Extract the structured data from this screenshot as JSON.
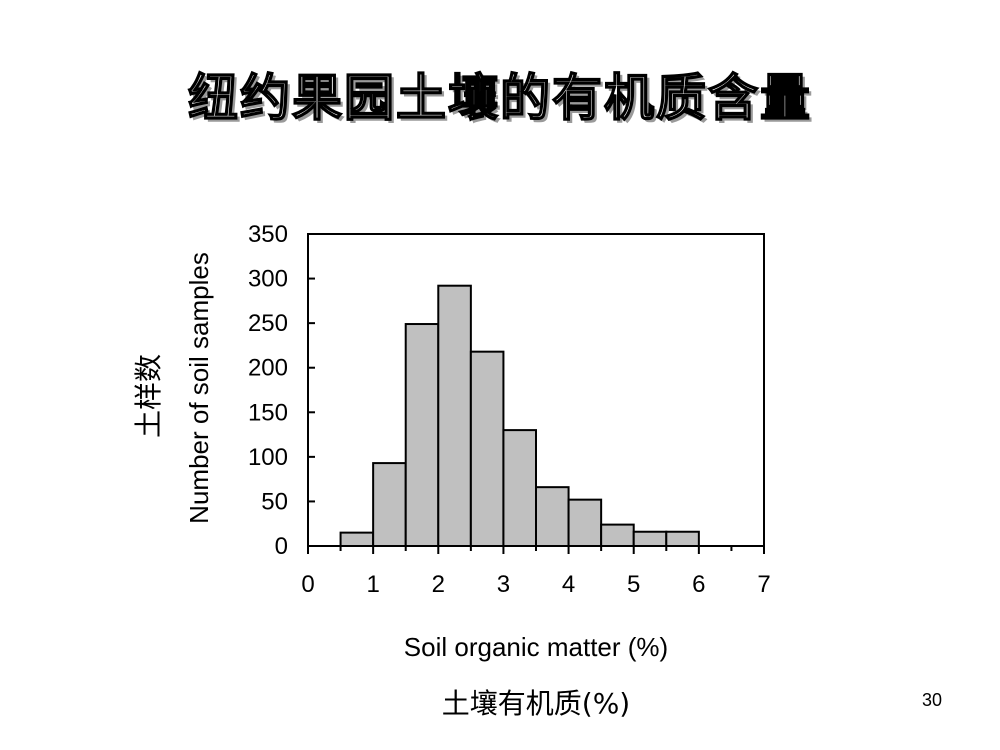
{
  "slide": {
    "title": "纽约果园土壤的有机质含量",
    "page_number": "30"
  },
  "chart_data": {
    "type": "bar",
    "title": "",
    "xlabel": "Soil organic matter (%)",
    "xlabel_cn": "土壤有机质(%)",
    "ylabel": "Number of soil samples",
    "ylabel_cn": "土样数",
    "xlim": [
      0,
      7
    ],
    "ylim": [
      0,
      350
    ],
    "x_ticks": [
      0,
      1,
      2,
      3,
      4,
      5,
      6,
      7
    ],
    "y_ticks": [
      0,
      50,
      100,
      150,
      200,
      250,
      300,
      350
    ],
    "bins": [
      {
        "x0": 0.5,
        "x1": 1.0,
        "value": 15
      },
      {
        "x0": 1.0,
        "x1": 1.5,
        "value": 93
      },
      {
        "x0": 1.5,
        "x1": 2.0,
        "value": 249
      },
      {
        "x0": 2.0,
        "x1": 2.5,
        "value": 292
      },
      {
        "x0": 2.5,
        "x1": 3.0,
        "value": 218
      },
      {
        "x0": 3.0,
        "x1": 3.5,
        "value": 130
      },
      {
        "x0": 3.5,
        "x1": 4.0,
        "value": 66
      },
      {
        "x0": 4.0,
        "x1": 4.5,
        "value": 52
      },
      {
        "x0": 4.5,
        "x1": 5.0,
        "value": 24
      },
      {
        "x0": 5.0,
        "x1": 5.5,
        "value": 16
      },
      {
        "x0": 5.5,
        "x1": 6.0,
        "value": 16
      }
    ],
    "bar_color": "#c0c0c0",
    "edge_color": "#000000",
    "grid": false,
    "legend": "none"
  }
}
